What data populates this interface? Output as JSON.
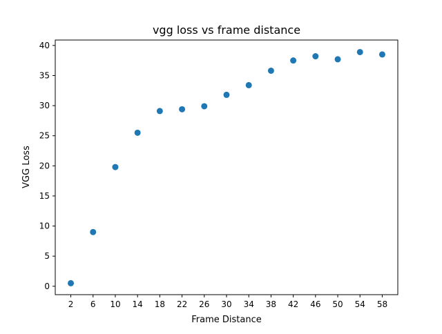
{
  "chart_data": {
    "type": "scatter",
    "title": "vgg loss vs frame distance",
    "xlabel": "Frame Distance",
    "ylabel": "VGG Loss",
    "x": [
      2,
      6,
      10,
      14,
      18,
      22,
      26,
      30,
      34,
      38,
      42,
      46,
      50,
      54,
      58
    ],
    "y": [
      0.5,
      9.0,
      19.8,
      25.5,
      29.1,
      29.4,
      29.9,
      31.8,
      33.4,
      35.8,
      37.5,
      38.2,
      37.7,
      38.9,
      38.5
    ],
    "xticks": [
      "2",
      "6",
      "10",
      "14",
      "18",
      "22",
      "26",
      "30",
      "34",
      "38",
      "42",
      "46",
      "50",
      "54",
      "58"
    ],
    "yticks": [
      "0",
      "5",
      "10",
      "15",
      "20",
      "25",
      "30",
      "35",
      "40"
    ],
    "xlim": [
      -0.8,
      60.8
    ],
    "ylim": [
      -1.4,
      40.9
    ],
    "grid": false,
    "marker_color": "#1f77b4"
  }
}
